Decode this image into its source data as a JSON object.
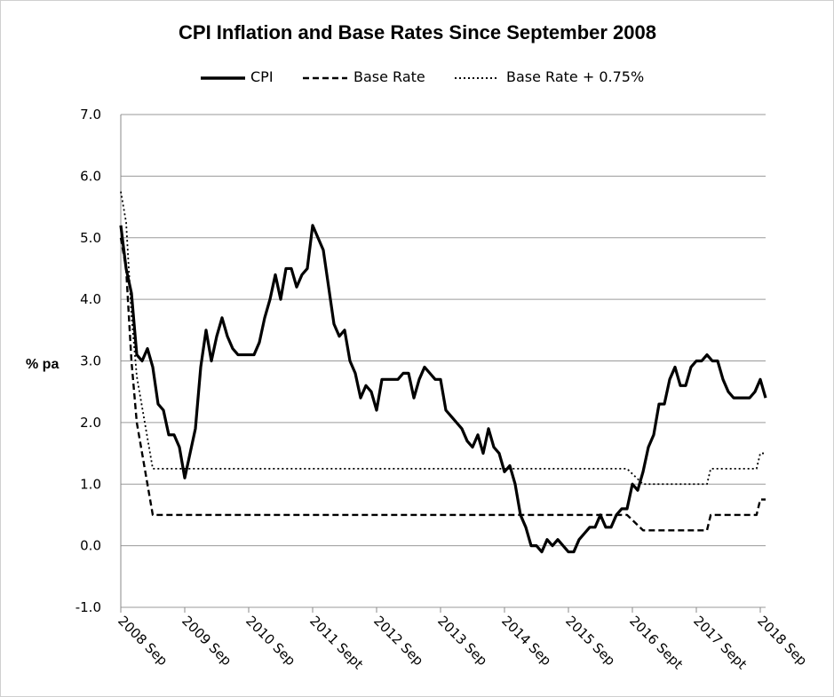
{
  "chart_data": {
    "type": "line",
    "title": "CPI Inflation and Base  Rates Since September 2008",
    "ylabel": "% pa",
    "xlabel": "",
    "ylim": [
      -1.0,
      7.0
    ],
    "yticks": [
      "7.0",
      "6.0",
      "5.0",
      "4.0",
      "3.0",
      "2.0",
      "1.0",
      "0.0",
      "-1.0"
    ],
    "ytick_values": [
      7,
      6,
      5,
      4,
      3,
      2,
      1,
      0,
      -1
    ],
    "xlim": [
      0,
      121
    ],
    "xticks": [
      {
        "label": "2008 Sep",
        "month": 0
      },
      {
        "label": "2009 Sep",
        "month": 12
      },
      {
        "label": "2010 Sep",
        "month": 24
      },
      {
        "label": "2011 Sept",
        "month": 36
      },
      {
        "label": "2012 Sep",
        "month": 48
      },
      {
        "label": "2013 Sep",
        "month": 60
      },
      {
        "label": "2014 Sep",
        "month": 72
      },
      {
        "label": "2015 Sep",
        "month": 84
      },
      {
        "label": "2016 Sept",
        "month": 96
      },
      {
        "label": "2017 Sept",
        "month": 108
      },
      {
        "label": "2018 Sep",
        "month": 120
      }
    ],
    "grid": true,
    "legend": "top",
    "series": [
      {
        "name": "CPI",
        "style": "solid",
        "values": [
          5.2,
          4.5,
          4.1,
          3.1,
          3.0,
          3.2,
          2.9,
          2.3,
          2.2,
          1.8,
          1.8,
          1.6,
          1.1,
          1.5,
          1.9,
          2.9,
          3.5,
          3.0,
          3.4,
          3.7,
          3.4,
          3.2,
          3.1,
          3.1,
          3.1,
          3.1,
          3.3,
          3.7,
          4.0,
          4.4,
          4.0,
          4.5,
          4.5,
          4.2,
          4.4,
          4.5,
          5.2,
          5.0,
          4.8,
          4.2,
          3.6,
          3.4,
          3.5,
          3.0,
          2.8,
          2.4,
          2.6,
          2.5,
          2.2,
          2.7,
          2.7,
          2.7,
          2.7,
          2.8,
          2.8,
          2.4,
          2.7,
          2.9,
          2.8,
          2.7,
          2.7,
          2.2,
          2.1,
          2.0,
          1.9,
          1.7,
          1.6,
          1.8,
          1.5,
          1.9,
          1.6,
          1.5,
          1.2,
          1.3,
          1.0,
          0.5,
          0.3,
          0.0,
          0.0,
          -0.1,
          0.1,
          0.0,
          0.1,
          0.0,
          -0.1,
          -0.1,
          0.1,
          0.2,
          0.3,
          0.3,
          0.5,
          0.3,
          0.3,
          0.5,
          0.6,
          0.6,
          1.0,
          0.9,
          1.2,
          1.6,
          1.8,
          2.3,
          2.3,
          2.7,
          2.9,
          2.6,
          2.6,
          2.9,
          3.0,
          3.0,
          3.1,
          3.0,
          3.0,
          2.7,
          2.5,
          2.4,
          2.4,
          2.4,
          2.4,
          2.5,
          2.7,
          2.4
        ]
      },
      {
        "name": "Base Rate",
        "style": "dashed",
        "points": [
          [
            0,
            5.0
          ],
          [
            1,
            4.5
          ],
          [
            2,
            3.0
          ],
          [
            3,
            2.0
          ],
          [
            4,
            1.5
          ],
          [
            5,
            1.0
          ],
          [
            6,
            0.5
          ],
          [
            95,
            0.5
          ],
          [
            98,
            0.25
          ],
          [
            110,
            0.25
          ],
          [
            110.7,
            0.5
          ],
          [
            119.3,
            0.5
          ],
          [
            120,
            0.75
          ],
          [
            121,
            0.75
          ]
        ]
      },
      {
        "name": "Base Rate + 0.75%",
        "style": "dotted",
        "points": [
          [
            0,
            5.75
          ],
          [
            1,
            5.25
          ],
          [
            2,
            3.75
          ],
          [
            3,
            2.75
          ],
          [
            4,
            2.25
          ],
          [
            5,
            1.75
          ],
          [
            6,
            1.25
          ],
          [
            95,
            1.25
          ],
          [
            98,
            1.0
          ],
          [
            110,
            1.0
          ],
          [
            110.7,
            1.25
          ],
          [
            119.3,
            1.25
          ],
          [
            120,
            1.5
          ],
          [
            121,
            1.5
          ]
        ]
      }
    ]
  }
}
